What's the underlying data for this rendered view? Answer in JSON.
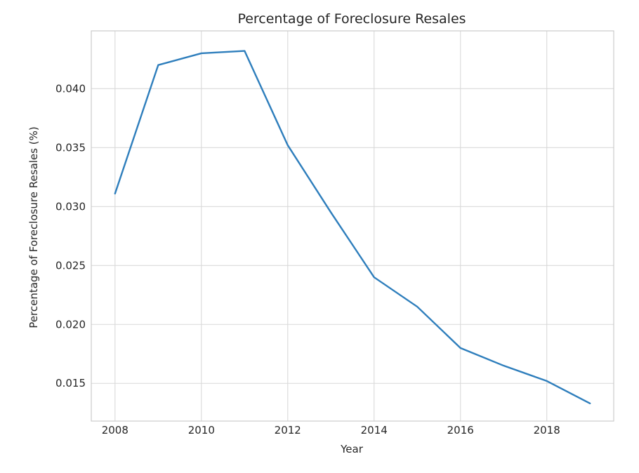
{
  "chart_data": {
    "type": "line",
    "title": "Percentage of Foreclosure Resales",
    "xlabel": "Year",
    "ylabel": "Percentage of Foreclosure Resales (%)",
    "x": [
      2008,
      2009,
      2010,
      2011,
      2012,
      2013,
      2014,
      2015,
      2016,
      2017,
      2018,
      2019
    ],
    "series": [
      {
        "values": [
          0.0311,
          0.042,
          0.043,
          0.0432,
          0.0352,
          0.0295,
          0.024,
          0.0215,
          0.018,
          0.0165,
          0.0152,
          0.0133
        ]
      }
    ],
    "xlim": [
      2007.45,
      2019.55
    ],
    "ylim": [
      0.0118,
      0.0449
    ],
    "xticks": [
      2008,
      2010,
      2012,
      2014,
      2016,
      2018
    ],
    "xtick_labels": [
      "2008",
      "2010",
      "2012",
      "2014",
      "2016",
      "2018"
    ],
    "yticks": [
      0.015,
      0.02,
      0.025,
      0.03,
      0.035,
      0.04
    ],
    "ytick_labels": [
      "0.015",
      "0.020",
      "0.025",
      "0.030",
      "0.035",
      "0.040"
    ],
    "grid": true,
    "line_color": "#2e7ebc",
    "grid_color": "#d9d9d9",
    "frame_color": "#cccccc"
  }
}
